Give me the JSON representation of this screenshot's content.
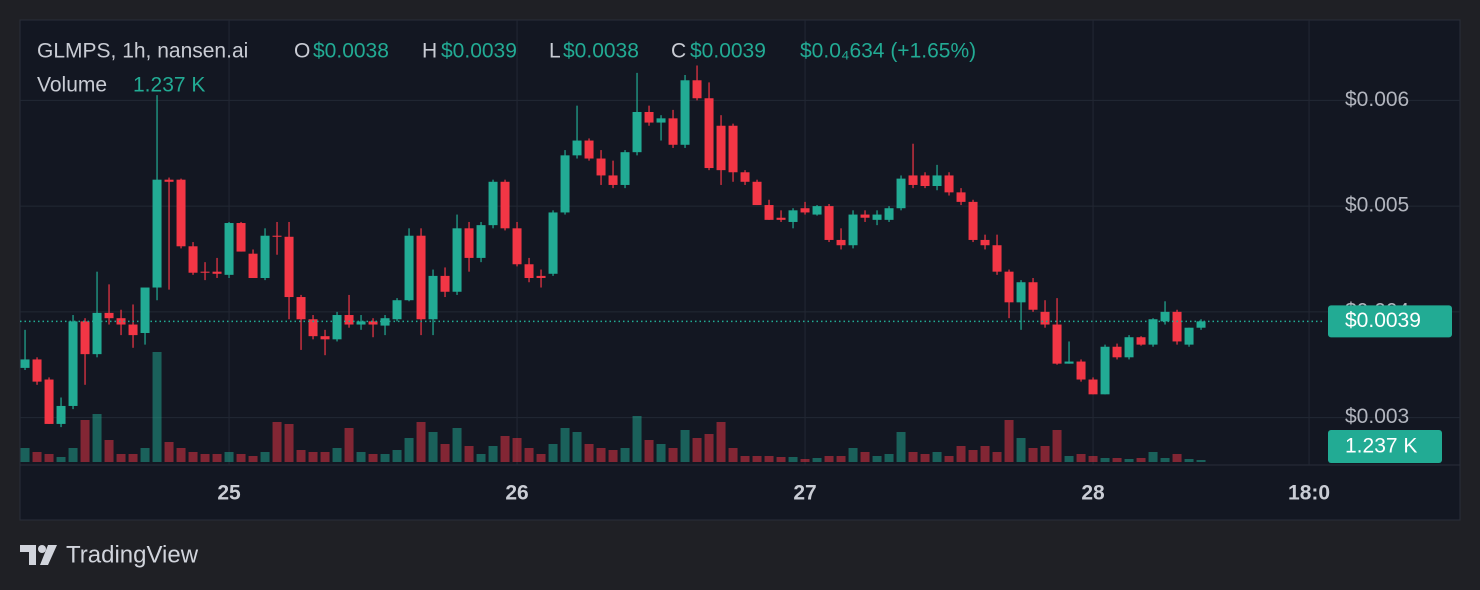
{
  "chart_data": {
    "type": "candlestick",
    "title": "GLMPS, 1h, nansen.ai",
    "legend": {
      "open_label": "O",
      "open": "$0.0038",
      "high_label": "H",
      "high": "$0.0039",
      "low_label": "L",
      "low": "$0.0038",
      "close_label": "C",
      "close": "$0.0039",
      "change": "$0.0₄634 (+1.65%)",
      "volume_label": "Volume",
      "volume": "1.237 K"
    },
    "up_color": "#22ab94",
    "down_color": "#f23645",
    "ylim": [
      0.00258,
      0.00676
    ],
    "yticks": [
      {
        "value": 0.003,
        "label": "$0.003"
      },
      {
        "value": 0.004,
        "label": "$0.004"
      },
      {
        "value": 0.005,
        "label": "$0.005"
      },
      {
        "value": 0.006,
        "label": "$0.006"
      }
    ],
    "xlim": [
      -0.42,
      108.33
    ],
    "xticks": [
      {
        "value": 17,
        "label": "25"
      },
      {
        "value": 41,
        "label": "26"
      },
      {
        "value": 65,
        "label": "27"
      },
      {
        "value": 89,
        "label": "28"
      },
      {
        "value": 107,
        "label": "18:0"
      }
    ],
    "grid": true,
    "open": [
      0.00347,
      0.00355,
      0.00336,
      0.00294,
      0.00311,
      0.00391,
      0.0036,
      0.00399,
      0.00394,
      0.00388,
      0.0038,
      0.00423,
      0.00525,
      0.00525,
      0.00462,
      0.00438,
      0.00438,
      0.00435,
      0.00484,
      0.00455,
      0.00432,
      0.00472,
      0.00471,
      0.00414,
      0.00393,
      0.00377,
      0.00374,
      0.00397,
      0.00388,
      0.00391,
      0.00387,
      0.00393,
      0.00411,
      0.00472,
      0.00393,
      0.00434,
      0.00419,
      0.00479,
      0.00451,
      0.00482,
      0.00523,
      0.00479,
      0.00445,
      0.00434,
      0.00436,
      0.00494,
      0.00548,
      0.00562,
      0.00545,
      0.00529,
      0.0052,
      0.00551,
      0.00589,
      0.00579,
      0.00583,
      0.00558,
      0.00619,
      0.00602,
      0.00576,
      0.00576,
      0.00532,
      0.00523,
      0.00501,
      0.00489,
      0.00485,
      0.00498,
      0.00492,
      0.005,
      0.00468,
      0.00463,
      0.00492,
      0.00487,
      0.00487,
      0.00498,
      0.00529,
      0.00529,
      0.00519,
      0.00529,
      0.00513,
      0.00504,
      0.00468,
      0.00463,
      0.00438,
      0.00409,
      0.00428,
      0.004,
      0.00388,
      0.00351,
      0.00353,
      0.00336,
      0.00322,
      0.00367,
      0.00357,
      0.00376,
      0.00369,
      0.00391,
      0.004,
      0.00369,
      0.00385
    ],
    "high": [
      0.00383,
      0.00357,
      0.00338,
      0.00319,
      0.00397,
      0.00394,
      0.00438,
      0.00426,
      0.00402,
      0.00407,
      0.00421,
      0.00605,
      0.00527,
      0.00526,
      0.00466,
      0.00447,
      0.00451,
      0.00485,
      0.00485,
      0.00459,
      0.00479,
      0.00485,
      0.00485,
      0.00416,
      0.00397,
      0.00383,
      0.004,
      0.00416,
      0.00397,
      0.00394,
      0.00397,
      0.00413,
      0.00479,
      0.00479,
      0.0044,
      0.00442,
      0.00492,
      0.00485,
      0.00485,
      0.00525,
      0.00525,
      0.00485,
      0.00451,
      0.0044,
      0.00496,
      0.00553,
      0.00595,
      0.00564,
      0.00553,
      0.00543,
      0.00553,
      0.00626,
      0.00595,
      0.00586,
      0.00591,
      0.00624,
      0.00633,
      0.00617,
      0.00586,
      0.00578,
      0.00534,
      0.00525,
      0.00506,
      0.00496,
      0.00498,
      0.00504,
      0.00501,
      0.00502,
      0.00479,
      0.00496,
      0.00496,
      0.00496,
      0.005,
      0.00529,
      0.00559,
      0.00532,
      0.00539,
      0.00532,
      0.00517,
      0.00506,
      0.00473,
      0.00473,
      0.0044,
      0.0043,
      0.00432,
      0.00411,
      0.00413,
      0.00372,
      0.00355,
      0.00338,
      0.00369,
      0.0037,
      0.00378,
      0.00377,
      0.00394,
      0.0041,
      0.00402,
      0.00385,
      0.00393
    ],
    "low": [
      0.00345,
      0.00331,
      0.00294,
      0.00291,
      0.00308,
      0.00331,
      0.00357,
      0.00388,
      0.00378,
      0.00366,
      0.00369,
      0.00411,
      0.00421,
      0.0046,
      0.00435,
      0.0043,
      0.00432,
      0.00432,
      0.00457,
      0.00432,
      0.0043,
      0.00454,
      0.00393,
      0.00364,
      0.00374,
      0.00359,
      0.00372,
      0.00385,
      0.00383,
      0.00376,
      0.00378,
      0.00391,
      0.0041,
      0.00378,
      0.00378,
      0.00414,
      0.00416,
      0.00438,
      0.00447,
      0.00479,
      0.00477,
      0.00443,
      0.00428,
      0.00423,
      0.00434,
      0.00492,
      0.00545,
      0.00543,
      0.0052,
      0.00517,
      0.00517,
      0.00548,
      0.00576,
      0.00562,
      0.00555,
      0.00555,
      0.006,
      0.00534,
      0.0052,
      0.00523,
      0.0052,
      0.00501,
      0.00487,
      0.00485,
      0.00479,
      0.00492,
      0.00491,
      0.00466,
      0.00459,
      0.0046,
      0.00485,
      0.00482,
      0.00485,
      0.00496,
      0.00517,
      0.00517,
      0.00515,
      0.0051,
      0.00501,
      0.00466,
      0.00459,
      0.00435,
      0.00394,
      0.00383,
      0.004,
      0.00385,
      0.0035,
      0.00351,
      0.00334,
      0.00322,
      0.00322,
      0.00355,
      0.00355,
      0.00368,
      0.00367,
      0.00388,
      0.00369,
      0.00367,
      0.00383
    ],
    "close": [
      0.00355,
      0.00334,
      0.00294,
      0.00311,
      0.00391,
      0.0036,
      0.00399,
      0.00394,
      0.00388,
      0.00378,
      0.00423,
      0.00525,
      0.00523,
      0.00462,
      0.00437,
      0.00437,
      0.00436,
      0.00484,
      0.00457,
      0.00432,
      0.00472,
      0.00471,
      0.00414,
      0.00393,
      0.00377,
      0.00374,
      0.00397,
      0.00388,
      0.00391,
      0.00388,
      0.00394,
      0.00411,
      0.00472,
      0.00393,
      0.00434,
      0.00419,
      0.00479,
      0.00451,
      0.00482,
      0.00523,
      0.00479,
      0.00445,
      0.00432,
      0.00432,
      0.00494,
      0.00548,
      0.00562,
      0.00545,
      0.00529,
      0.0052,
      0.00551,
      0.00589,
      0.00579,
      0.00583,
      0.00558,
      0.00619,
      0.00602,
      0.00536,
      0.00534,
      0.00532,
      0.00523,
      0.00501,
      0.00487,
      0.00487,
      0.00496,
      0.00494,
      0.005,
      0.00468,
      0.00463,
      0.00492,
      0.00489,
      0.00492,
      0.00498,
      0.00526,
      0.0052,
      0.00519,
      0.00529,
      0.00513,
      0.00504,
      0.00468,
      0.00463,
      0.00438,
      0.00409,
      0.00428,
      0.00402,
      0.00388,
      0.00351,
      0.00353,
      0.00336,
      0.00322,
      0.00367,
      0.00357,
      0.00376,
      0.00369,
      0.00393,
      0.004,
      0.00372,
      0.00385,
      0.00391
    ],
    "volume": [
      8680,
      6200,
      4960,
      3100,
      8680,
      26040,
      29760,
      13640,
      4960,
      4960,
      8680,
      68200,
      12400,
      8680,
      6200,
      4960,
      4960,
      6200,
      4960,
      3720,
      6200,
      24800,
      23560,
      7440,
      6200,
      6200,
      8680,
      21080,
      6200,
      4960,
      4960,
      7440,
      14880,
      24800,
      18600,
      11160,
      21080,
      9920,
      4960,
      9920,
      16120,
      14880,
      8680,
      4960,
      11160,
      21080,
      18600,
      11160,
      8680,
      7440,
      8680,
      28520,
      13640,
      11160,
      8680,
      19840,
      14880,
      17360,
      24800,
      8680,
      3720,
      3720,
      3720,
      3100,
      3100,
      1860,
      2480,
      3720,
      3720,
      8680,
      6200,
      3720,
      4960,
      18600,
      6200,
      4960,
      6200,
      3720,
      9920,
      7440,
      9920,
      6200,
      26040,
      14880,
      8680,
      9920,
      19840,
      3720,
      4960,
      3720,
      2480,
      2480,
      1860,
      2480,
      6200,
      2480,
      4960,
      1860,
      1237
    ]
  },
  "brand": "TradingView"
}
